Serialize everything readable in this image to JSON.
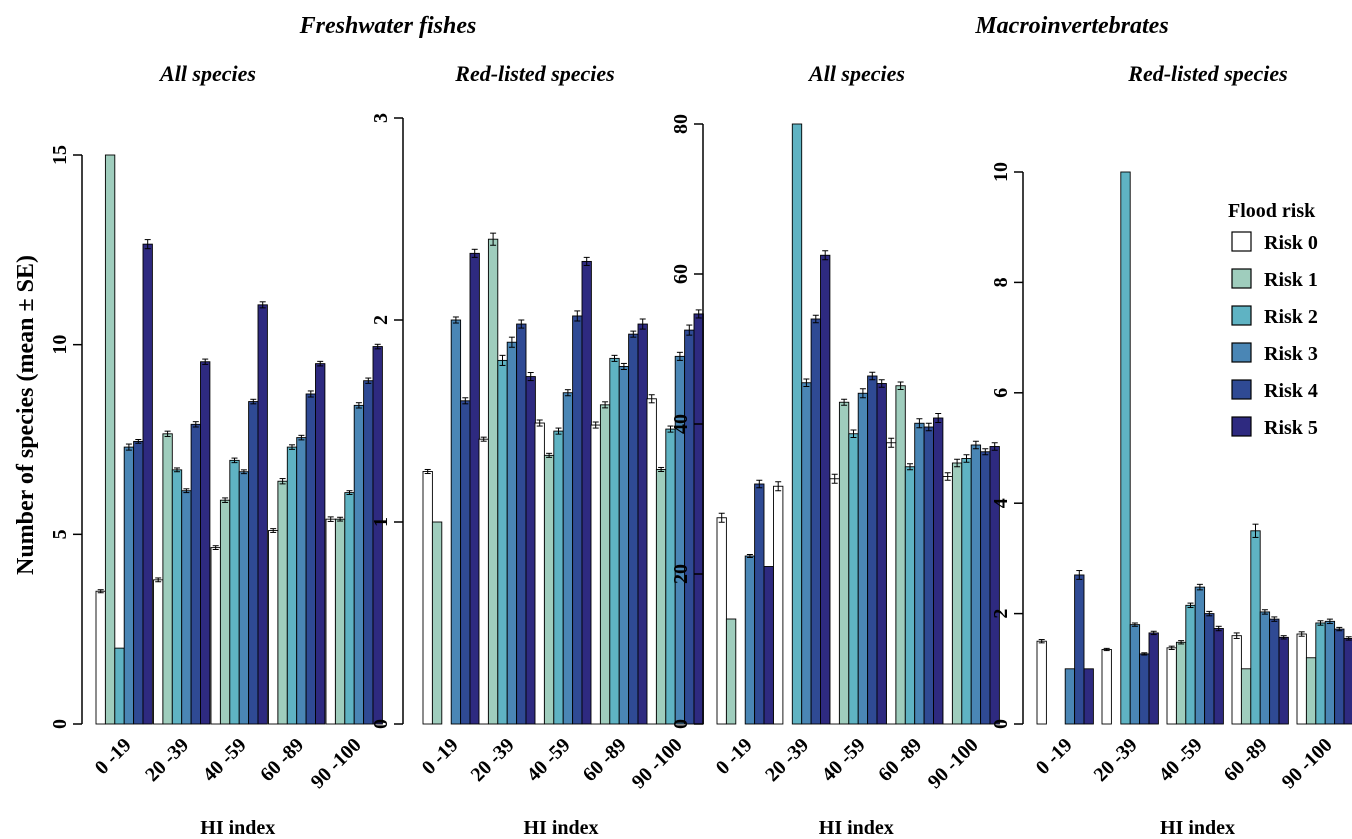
{
  "colors": [
    "#ffffff",
    "#9fcdbd",
    "#5fb3c3",
    "#4a86b5",
    "#2f4a94",
    "#2e2a80"
  ],
  "ylabel": "Number of species (mean ± SE)",
  "groups": [
    {
      "title": "Freshwater fishes"
    },
    {
      "title": "Macroinvertebrates"
    }
  ],
  "legend": {
    "title": "Flood risk",
    "entries": [
      "Risk 0",
      "Risk 1",
      "Risk 2",
      "Risk 3",
      "Risk 4",
      "Risk 5"
    ],
    "placement": "top-right"
  },
  "chart_data": [
    {
      "type": "bar",
      "title": "All species",
      "xlabel": "HI index",
      "ylabel": "Number of species (mean ± SE)",
      "categories": [
        "0 -19",
        "20 -39",
        "40 -59",
        "60 -89",
        "90 -100"
      ],
      "ylim": [
        0,
        15
      ],
      "yticks": [
        0,
        5,
        10,
        15
      ],
      "series": [
        {
          "name": "Risk 0",
          "values": [
            3.5,
            3.8,
            4.65,
            5.1,
            5.4
          ],
          "se": [
            0.04,
            0.05,
            0.05,
            0.05,
            0.06
          ]
        },
        {
          "name": "Risk 1",
          "values": [
            15,
            7.65,
            5.9,
            6.4,
            5.4
          ],
          "se": [
            0,
            0.07,
            0.06,
            0.07,
            0.05
          ]
        },
        {
          "name": "Risk 2",
          "values": [
            2,
            6.7,
            6.95,
            7.3,
            6.1
          ],
          "se": [
            0,
            0.05,
            0.06,
            0.06,
            0.05
          ]
        },
        {
          "name": "Risk 3",
          "values": [
            7.3,
            6.15,
            6.65,
            7.55,
            8.4
          ],
          "se": [
            0.08,
            0.05,
            0.05,
            0.06,
            0.07
          ]
        },
        {
          "name": "Risk 4",
          "values": [
            7.45,
            7.9,
            8.5,
            8.7,
            9.05
          ],
          "se": [
            0.05,
            0.07,
            0.06,
            0.08,
            0.07
          ]
        },
        {
          "name": "Risk 5",
          "values": [
            12.65,
            9.55,
            11.05,
            9.5,
            9.95
          ],
          "se": [
            0.12,
            0.07,
            0.08,
            0.06,
            0.06
          ]
        }
      ]
    },
    {
      "type": "bar",
      "title": "Red-listed  species",
      "xlabel": "HI index",
      "categories": [
        "0 -19",
        "20 -39",
        "40 -59",
        "60 -89",
        "90 -100"
      ],
      "ylim": [
        0,
        3
      ],
      "yticks": [
        0,
        1,
        2,
        3
      ],
      "series": [
        {
          "name": "Risk 0",
          "values": [
            1.25,
            1.41,
            1.49,
            1.48,
            1.61
          ],
          "se": [
            0.01,
            0.01,
            0.015,
            0.015,
            0.02
          ]
        },
        {
          "name": "Risk 1",
          "values": [
            1.0,
            2.4,
            1.33,
            1.58,
            1.26
          ],
          "se": [
            0,
            0.03,
            0.01,
            0.015,
            0.01
          ]
        },
        {
          "name": "Risk 2",
          "values": [
            0,
            1.8,
            1.45,
            1.81,
            1.46
          ],
          "se": [
            0,
            0.025,
            0.015,
            0.015,
            0.015
          ]
        },
        {
          "name": "Risk 3",
          "values": [
            2.0,
            1.89,
            1.64,
            1.77,
            1.82
          ],
          "se": [
            0.015,
            0.025,
            0.015,
            0.015,
            0.02
          ]
        },
        {
          "name": "Risk 4",
          "values": [
            1.6,
            1.98,
            2.02,
            1.93,
            1.95
          ],
          "se": [
            0.015,
            0.02,
            0.025,
            0.015,
            0.025
          ]
        },
        {
          "name": "Risk 5",
          "values": [
            2.33,
            1.72,
            2.29,
            1.98,
            2.03
          ],
          "se": [
            0.02,
            0.02,
            0.02,
            0.025,
            0.02
          ]
        }
      ]
    },
    {
      "type": "bar",
      "title": "All species",
      "xlabel": "HI index",
      "categories": [
        "0 -19",
        "20 -39",
        "40 -59",
        "60 -89",
        "90 -100"
      ],
      "ylim": [
        0,
        80
      ],
      "yticks": [
        0,
        20,
        40,
        60,
        80
      ],
      "series": [
        {
          "name": "Risk 0",
          "values": [
            27.5,
            31.7,
            32.7,
            37.5,
            33.0
          ],
          "se": [
            0.6,
            0.6,
            0.6,
            0.6,
            0.5
          ]
        },
        {
          "name": "Risk 1",
          "values": [
            14,
            0,
            42.9,
            45.1,
            34.8
          ],
          "se": [
            0,
            0,
            0.4,
            0.5,
            0.5
          ]
        },
        {
          "name": "Risk 2",
          "values": [
            0,
            80,
            38.7,
            34.3,
            35.4
          ],
          "se": [
            0,
            0,
            0.5,
            0.4,
            0.5
          ]
        },
        {
          "name": "Risk 3",
          "values": [
            22.4,
            45.5,
            44.1,
            40.1,
            37.2
          ],
          "se": [
            0.2,
            0.5,
            0.6,
            0.6,
            0.5
          ]
        },
        {
          "name": "Risk 4",
          "values": [
            32.0,
            54.0,
            46.4,
            39.6,
            36.3
          ],
          "se": [
            0.5,
            0.5,
            0.5,
            0.5,
            0.4
          ]
        },
        {
          "name": "Risk 5",
          "values": [
            21,
            62.5,
            45.4,
            40.8,
            37.0
          ],
          "se": [
            0,
            0.6,
            0.5,
            0.6,
            0.5
          ]
        }
      ]
    },
    {
      "type": "bar",
      "title": "Red-listed species",
      "xlabel": "HI index",
      "categories": [
        "0 -19",
        "20 -39",
        "40 -59",
        "60 -89",
        "90 -100"
      ],
      "ylim": [
        0,
        10
      ],
      "yticks": [
        0,
        2,
        4,
        6,
        8,
        10
      ],
      "series": [
        {
          "name": "Risk 0",
          "values": [
            1.5,
            1.35,
            1.38,
            1.6,
            1.63
          ],
          "se": [
            0.03,
            0.02,
            0.03,
            0.05,
            0.04
          ]
        },
        {
          "name": "Risk 1",
          "values": [
            0,
            0,
            1.48,
            1.0,
            1.2
          ],
          "se": [
            0,
            0,
            0.03,
            0,
            0
          ]
        },
        {
          "name": "Risk 2",
          "values": [
            0,
            10,
            2.15,
            3.5,
            1.83
          ],
          "se": [
            0,
            0,
            0.04,
            0.12,
            0.04
          ]
        },
        {
          "name": "Risk 3",
          "values": [
            1.0,
            1.8,
            2.48,
            2.03,
            1.86
          ],
          "se": [
            0,
            0.03,
            0.05,
            0.04,
            0.04
          ]
        },
        {
          "name": "Risk 4",
          "values": [
            2.7,
            1.27,
            2.0,
            1.9,
            1.72
          ],
          "se": [
            0.08,
            0.02,
            0.04,
            0.04,
            0.03
          ]
        },
        {
          "name": "Risk 5",
          "values": [
            1.0,
            1.65,
            1.73,
            1.57,
            1.55
          ],
          "se": [
            0,
            0.03,
            0.04,
            0.03,
            0.03
          ]
        }
      ]
    }
  ]
}
